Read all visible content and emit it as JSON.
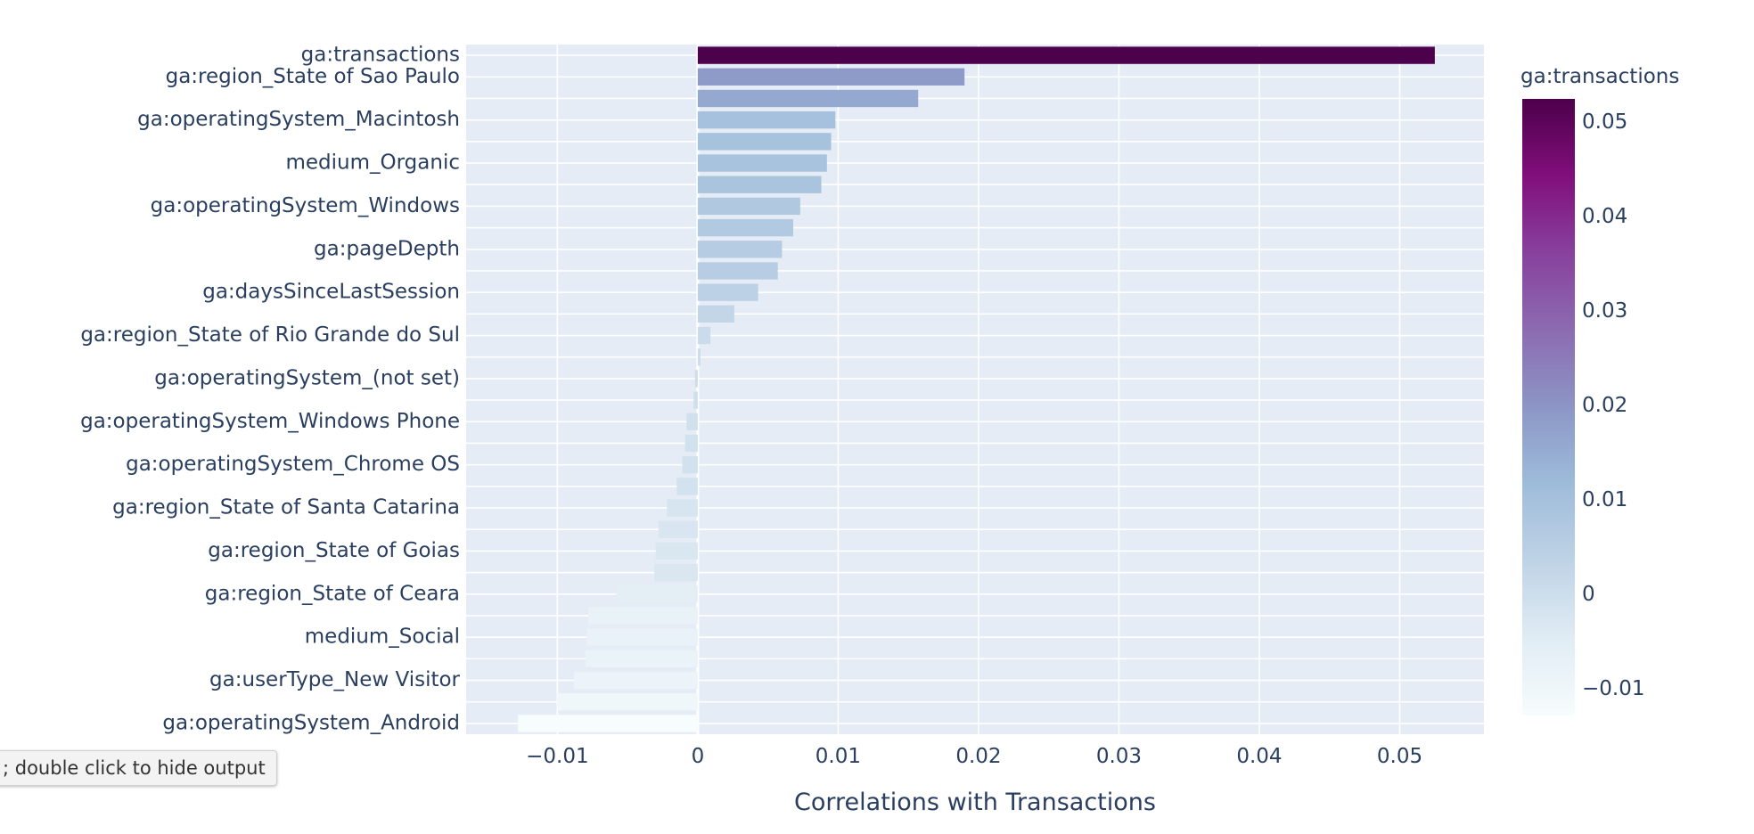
{
  "tooltip": {
    "text": "; double click to hide output"
  },
  "chart_data": {
    "type": "bar",
    "orientation": "horizontal",
    "xlabel": "Correlations with Transactions",
    "xlim": [
      -0.0165,
      0.056
    ],
    "x_ticks": [
      -0.01,
      0,
      0.01,
      0.02,
      0.03,
      0.04,
      0.05
    ],
    "x_tick_labels": [
      "−0.01",
      "0",
      "0.01",
      "0.02",
      "0.03",
      "0.04",
      "0.05"
    ],
    "grid": true,
    "colorbar": {
      "title": "ga:transactions",
      "range": [
        -0.0128,
        0.0525
      ],
      "ticks": [
        0.05,
        0.04,
        0.03,
        0.02,
        0.01,
        0,
        -0.01
      ],
      "tick_labels": [
        "0.05",
        "0.04",
        "0.03",
        "0.02",
        "0.01",
        "0",
        "−0.01"
      ],
      "colorscale": [
        "#f7fcfd",
        "#e0ecf4",
        "#bfd3e6",
        "#9ebcda",
        "#8c96c6",
        "#8c6bb1",
        "#88419d",
        "#810f7c",
        "#4d004b"
      ]
    },
    "categories": [
      "ga:transactions",
      "ga:region_State of Sao Paulo",
      "",
      "ga:operatingSystem_Macintosh",
      "",
      "medium_Organic",
      "",
      "ga:operatingSystem_Windows",
      "",
      "ga:pageDepth",
      "",
      "ga:daysSinceLastSession",
      "",
      "ga:region_State of Rio Grande do Sul",
      "",
      "ga:operatingSystem_(not set)",
      "",
      "ga:operatingSystem_Windows Phone",
      "",
      "ga:operatingSystem_Chrome OS",
      "",
      "ga:region_State of Santa Catarina",
      "",
      "ga:region_State of Goias",
      "",
      "ga:region_State of Ceara",
      "",
      "medium_Social",
      "",
      "ga:userType_New Visitor",
      "",
      "ga:operatingSystem_Android"
    ],
    "values": [
      0.0525,
      0.019,
      0.0157,
      0.0098,
      0.0095,
      0.0092,
      0.0088,
      0.0073,
      0.0068,
      0.006,
      0.0057,
      0.0043,
      0.0026,
      0.0009,
      0.0002,
      -0.0002,
      -0.0003,
      -0.0008,
      -0.0009,
      -0.0011,
      -0.0015,
      -0.0022,
      -0.0028,
      -0.003,
      -0.0031,
      -0.0058,
      -0.0078,
      -0.0079,
      -0.008,
      -0.0088,
      -0.01,
      -0.0128
    ]
  }
}
